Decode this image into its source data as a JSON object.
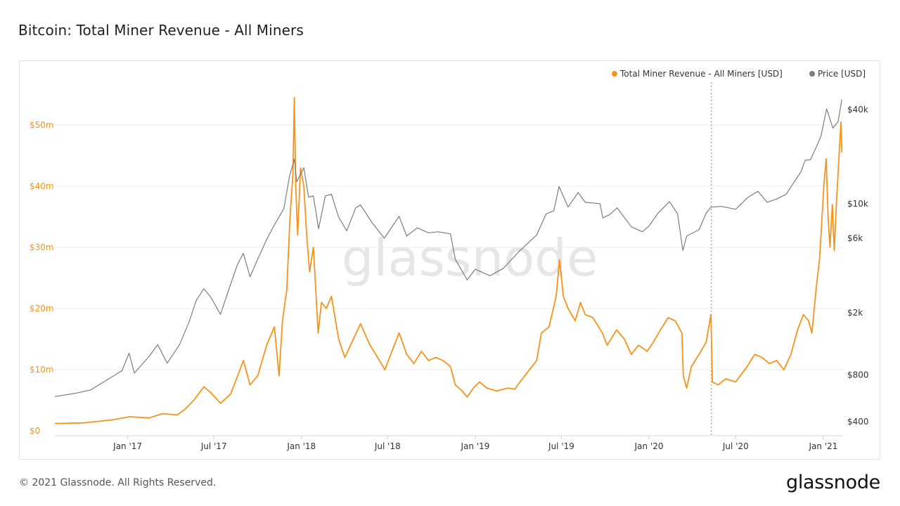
{
  "page": {
    "title": "Bitcoin: Total Miner Revenue - All Miners",
    "copyright": "© 2021 Glassnode. All Rights Reserved.",
    "logo": "glassnode",
    "watermark": "glassnode"
  },
  "colors": {
    "revenue": "#f7931a",
    "price": "#7d7d7d",
    "grid": "#ececec",
    "watermark": "#e6e6e6",
    "marker": "#8a8a8a"
  },
  "chart_data": {
    "type": "line",
    "title": "Bitcoin: Total Miner Revenue - All Miners",
    "legend": {
      "placement": "top-right"
    },
    "grid": true,
    "x_range": [
      "2016-08-01",
      "2021-02-10"
    ],
    "x_ticks": [
      {
        "date": "2017-01-01",
        "label": "Jan '17"
      },
      {
        "date": "2017-07-01",
        "label": "Jul '17"
      },
      {
        "date": "2018-01-01",
        "label": "Jan '18"
      },
      {
        "date": "2018-07-01",
        "label": "Jul '18"
      },
      {
        "date": "2019-01-01",
        "label": "Jan '19"
      },
      {
        "date": "2019-07-01",
        "label": "Jul '19"
      },
      {
        "date": "2020-01-01",
        "label": "Jan '20"
      },
      {
        "date": "2020-07-01",
        "label": "Jul '20"
      },
      {
        "date": "2021-01-01",
        "label": "Jan '21"
      }
    ],
    "y_left": {
      "unit": "USD",
      "range": [
        0,
        57000000
      ],
      "ticks": [
        {
          "value": 0,
          "label": "$0"
        },
        {
          "value": 10000000,
          "label": "$10m"
        },
        {
          "value": 20000000,
          "label": "$20m"
        },
        {
          "value": 30000000,
          "label": "$30m"
        },
        {
          "value": 40000000,
          "label": "$40m"
        },
        {
          "value": 50000000,
          "label": "$50m"
        }
      ]
    },
    "y_right": {
      "unit": "USD",
      "scale": "log",
      "range": [
        350,
        60000
      ],
      "ticks": [
        {
          "value": 400,
          "label": "$400"
        },
        {
          "value": 800,
          "label": "$800"
        },
        {
          "value": 2000,
          "label": "$2k"
        },
        {
          "value": 6000,
          "label": "$6k"
        },
        {
          "value": 10000,
          "label": "$10k"
        },
        {
          "value": 40000,
          "label": "$40k"
        }
      ]
    },
    "annotations": [
      {
        "type": "vertical-dotted-line",
        "date": "2020-05-11"
      }
    ],
    "series": [
      {
        "name": "Total Miner Revenue - All Miners [USD]",
        "axis": "left",
        "color": "#f7931a",
        "points": [
          [
            "2016-08-01",
            1200000.0
          ],
          [
            "2016-10-01",
            1300000.0
          ],
          [
            "2016-12-01",
            1800000.0
          ],
          [
            "2017-01-05",
            2300000.0
          ],
          [
            "2017-02-15",
            2100000.0
          ],
          [
            "2017-03-15",
            2800000.0
          ],
          [
            "2017-04-15",
            2600000.0
          ],
          [
            "2017-05-01",
            3500000.0
          ],
          [
            "2017-05-20",
            5000000.0
          ],
          [
            "2017-06-10",
            7200000.0
          ],
          [
            "2017-06-25",
            6200000.0
          ],
          [
            "2017-07-15",
            4500000.0
          ],
          [
            "2017-08-05",
            6000000.0
          ],
          [
            "2017-08-20",
            9000000.0
          ],
          [
            "2017-09-01",
            11500000.0
          ],
          [
            "2017-09-15",
            7500000.0
          ],
          [
            "2017-10-01",
            9000000.0
          ],
          [
            "2017-10-20",
            14000000.0
          ],
          [
            "2017-11-05",
            17000000.0
          ],
          [
            "2017-11-15",
            9000000.0
          ],
          [
            "2017-11-22",
            18000000.0
          ],
          [
            "2017-12-01",
            23000000.0
          ],
          [
            "2017-12-08",
            35000000.0
          ],
          [
            "2017-12-14",
            42000000.0
          ],
          [
            "2017-12-17",
            54500000.0
          ],
          [
            "2017-12-20",
            40000000.0
          ],
          [
            "2017-12-24",
            32000000.0
          ],
          [
            "2017-12-30",
            43000000.0
          ],
          [
            "2018-01-06",
            40000000.0
          ],
          [
            "2018-01-12",
            32000000.0
          ],
          [
            "2018-01-18",
            26000000.0
          ],
          [
            "2018-01-26",
            30000000.0
          ],
          [
            "2018-02-05",
            16000000.0
          ],
          [
            "2018-02-12",
            21000000.0
          ],
          [
            "2018-02-22",
            20000000.0
          ],
          [
            "2018-03-05",
            22000000.0
          ],
          [
            "2018-03-20",
            15000000.0
          ],
          [
            "2018-04-02",
            12000000.0
          ],
          [
            "2018-04-20",
            15000000.0
          ],
          [
            "2018-05-05",
            17500000.0
          ],
          [
            "2018-05-25",
            14000000.0
          ],
          [
            "2018-06-10",
            12000000.0
          ],
          [
            "2018-06-25",
            10000000.0
          ],
          [
            "2018-07-05",
            12000000.0
          ],
          [
            "2018-07-25",
            16000000.0
          ],
          [
            "2018-08-10",
            12500000.0
          ],
          [
            "2018-08-25",
            11000000.0
          ],
          [
            "2018-09-10",
            13000000.0
          ],
          [
            "2018-09-25",
            11500000.0
          ],
          [
            "2018-10-10",
            12000000.0
          ],
          [
            "2018-10-25",
            11500000.0
          ],
          [
            "2018-11-10",
            10500000.0
          ],
          [
            "2018-11-20",
            7500000.0
          ],
          [
            "2018-12-05",
            6500000.0
          ],
          [
            "2018-12-15",
            5500000.0
          ],
          [
            "2018-12-28",
            7000000.0
          ],
          [
            "2019-01-10",
            8000000.0
          ],
          [
            "2019-01-25",
            7000000.0
          ],
          [
            "2019-02-15",
            6500000.0
          ],
          [
            "2019-03-10",
            7000000.0
          ],
          [
            "2019-03-25",
            6800000.0
          ],
          [
            "2019-04-05",
            8000000.0
          ],
          [
            "2019-04-20",
            9500000.0
          ],
          [
            "2019-05-10",
            11500000.0
          ],
          [
            "2019-05-20",
            16000000.0
          ],
          [
            "2019-06-05",
            17000000.0
          ],
          [
            "2019-06-20",
            22000000.0
          ],
          [
            "2019-06-27",
            28000000.0
          ],
          [
            "2019-07-05",
            22000000.0
          ],
          [
            "2019-07-15",
            20000000.0
          ],
          [
            "2019-07-30",
            18000000.0
          ],
          [
            "2019-08-10",
            21000000.0
          ],
          [
            "2019-08-20",
            19000000.0
          ],
          [
            "2019-09-05",
            18500000.0
          ],
          [
            "2019-09-25",
            16000000.0
          ],
          [
            "2019-10-05",
            14000000.0
          ],
          [
            "2019-10-25",
            16500000.0
          ],
          [
            "2019-11-10",
            15000000.0
          ],
          [
            "2019-11-25",
            12500000.0
          ],
          [
            "2019-12-10",
            14000000.0
          ],
          [
            "2019-12-28",
            13000000.0
          ],
          [
            "2020-01-10",
            14500000.0
          ],
          [
            "2020-01-25",
            16500000.0
          ],
          [
            "2020-02-10",
            18500000.0
          ],
          [
            "2020-02-25",
            18000000.0
          ],
          [
            "2020-03-10",
            16000000.0
          ],
          [
            "2020-03-13",
            9000000.0
          ],
          [
            "2020-03-20",
            7000000.0
          ],
          [
            "2020-03-30",
            10500000.0
          ],
          [
            "2020-04-15",
            12500000.0
          ],
          [
            "2020-04-30",
            14500000.0
          ],
          [
            "2020-05-10",
            19000000.0
          ],
          [
            "2020-05-13",
            8000000.0
          ],
          [
            "2020-05-25",
            7500000.0
          ],
          [
            "2020-06-10",
            8500000.0
          ],
          [
            "2020-07-01",
            8000000.0
          ],
          [
            "2020-07-25",
            10500000.0
          ],
          [
            "2020-08-10",
            12500000.0
          ],
          [
            "2020-08-25",
            12000000.0
          ],
          [
            "2020-09-10",
            11000000.0
          ],
          [
            "2020-09-25",
            11500000.0
          ],
          [
            "2020-10-10",
            10000000.0
          ],
          [
            "2020-10-25",
            12500000.0
          ],
          [
            "2020-11-08",
            16500000.0
          ],
          [
            "2020-11-20",
            19000000.0
          ],
          [
            "2020-12-01",
            18000000.0
          ],
          [
            "2020-12-08",
            16000000.0
          ],
          [
            "2020-12-18",
            24000000.0
          ],
          [
            "2020-12-24",
            28000000.0
          ],
          [
            "2020-12-28",
            33000000.0
          ],
          [
            "2021-01-02",
            40000000.0
          ],
          [
            "2021-01-07",
            44500000.0
          ],
          [
            "2021-01-11",
            35000000.0
          ],
          [
            "2021-01-15",
            30000000.0
          ],
          [
            "2021-01-20",
            37000000.0
          ],
          [
            "2021-01-24",
            29500000.0
          ],
          [
            "2021-01-29",
            38000000.0
          ],
          [
            "2021-02-03",
            45000000.0
          ],
          [
            "2021-02-07",
            50500000.0
          ],
          [
            "2021-02-09",
            45500000.0
          ]
        ]
      },
      {
        "name": "Price [USD]",
        "axis": "right",
        "color": "#7d7d7d",
        "points": [
          [
            "2016-08-01",
            580
          ],
          [
            "2016-09-15",
            610
          ],
          [
            "2016-10-15",
            640
          ],
          [
            "2016-11-15",
            730
          ],
          [
            "2016-12-20",
            850
          ],
          [
            "2017-01-04",
            1100
          ],
          [
            "2017-01-15",
            820
          ],
          [
            "2017-02-15",
            1050
          ],
          [
            "2017-03-05",
            1250
          ],
          [
            "2017-03-25",
            950
          ],
          [
            "2017-04-20",
            1250
          ],
          [
            "2017-05-10",
            1750
          ],
          [
            "2017-05-25",
            2400
          ],
          [
            "2017-06-10",
            2850
          ],
          [
            "2017-06-25",
            2500
          ],
          [
            "2017-07-15",
            1950
          ],
          [
            "2017-08-01",
            2800
          ],
          [
            "2017-08-20",
            4100
          ],
          [
            "2017-09-01",
            4800
          ],
          [
            "2017-09-15",
            3400
          ],
          [
            "2017-10-01",
            4400
          ],
          [
            "2017-10-20",
            5900
          ],
          [
            "2017-11-05",
            7300
          ],
          [
            "2017-11-25",
            9300
          ],
          [
            "2017-12-07",
            15000
          ],
          [
            "2017-12-17",
            19300
          ],
          [
            "2017-12-22",
            13800
          ],
          [
            "2018-01-06",
            17000
          ],
          [
            "2018-01-16",
            11000
          ],
          [
            "2018-01-26",
            11200
          ],
          [
            "2018-02-06",
            6900
          ],
          [
            "2018-02-20",
            11200
          ],
          [
            "2018-03-05",
            11500
          ],
          [
            "2018-03-20",
            8200
          ],
          [
            "2018-04-06",
            6700
          ],
          [
            "2018-04-25",
            9400
          ],
          [
            "2018-05-05",
            9800
          ],
          [
            "2018-05-30",
            7500
          ],
          [
            "2018-06-24",
            6000
          ],
          [
            "2018-07-25",
            8300
          ],
          [
            "2018-08-10",
            6200
          ],
          [
            "2018-09-01",
            7000
          ],
          [
            "2018-09-25",
            6500
          ],
          [
            "2018-10-15",
            6600
          ],
          [
            "2018-11-10",
            6400
          ],
          [
            "2018-11-20",
            4400
          ],
          [
            "2018-12-15",
            3250
          ],
          [
            "2019-01-01",
            3800
          ],
          [
            "2019-02-01",
            3450
          ],
          [
            "2019-03-01",
            3850
          ],
          [
            "2019-04-02",
            4900
          ],
          [
            "2019-05-10",
            6300
          ],
          [
            "2019-05-30",
            8600
          ],
          [
            "2019-06-15",
            9000
          ],
          [
            "2019-06-26",
            12900
          ],
          [
            "2019-07-15",
            9500
          ],
          [
            "2019-08-05",
            11800
          ],
          [
            "2019-08-20",
            10200
          ],
          [
            "2019-09-20",
            10000
          ],
          [
            "2019-09-26",
            8100
          ],
          [
            "2019-10-10",
            8500
          ],
          [
            "2019-10-26",
            9400
          ],
          [
            "2019-11-25",
            7100
          ],
          [
            "2019-12-18",
            6600
          ],
          [
            "2020-01-01",
            7200
          ],
          [
            "2020-01-20",
            8700
          ],
          [
            "2020-02-13",
            10300
          ],
          [
            "2020-03-01",
            8600
          ],
          [
            "2020-03-12",
            5000
          ],
          [
            "2020-03-20",
            6200
          ],
          [
            "2020-04-15",
            6800
          ],
          [
            "2020-04-30",
            8700
          ],
          [
            "2020-05-10",
            9500
          ],
          [
            "2020-06-01",
            9600
          ],
          [
            "2020-07-01",
            9200
          ],
          [
            "2020-07-27",
            11000
          ],
          [
            "2020-08-17",
            12000
          ],
          [
            "2020-09-05",
            10200
          ],
          [
            "2020-09-25",
            10700
          ],
          [
            "2020-10-15",
            11500
          ],
          [
            "2020-10-30",
            13500
          ],
          [
            "2020-11-15",
            16000
          ],
          [
            "2020-11-24",
            19000
          ],
          [
            "2020-12-05",
            19100
          ],
          [
            "2020-12-17",
            23000
          ],
          [
            "2020-12-27",
            27000
          ],
          [
            "2021-01-08",
            40500
          ],
          [
            "2021-01-21",
            30500
          ],
          [
            "2021-02-01",
            33500
          ],
          [
            "2021-02-09",
            46500
          ]
        ]
      }
    ]
  }
}
